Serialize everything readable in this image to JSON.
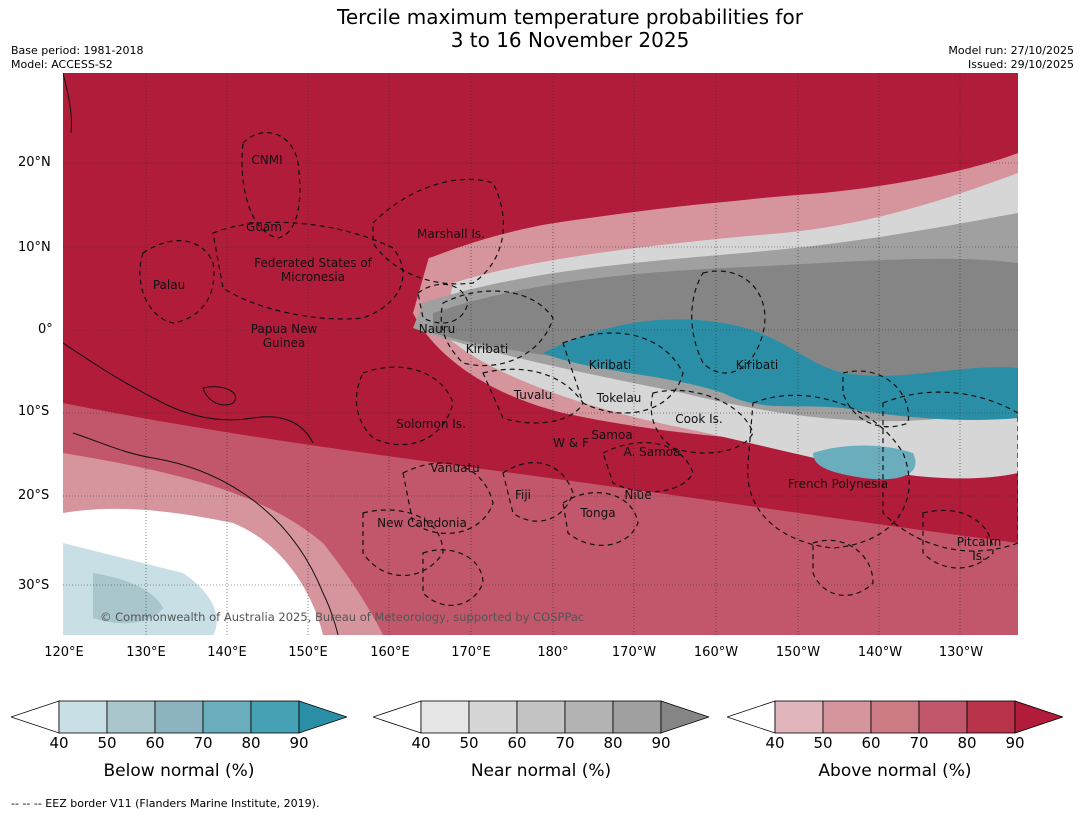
{
  "title": {
    "line1": "Tercile maximum temperature probabilities for",
    "line2": "3 to 16 November 2025"
  },
  "meta": {
    "base_period": "Base period: 1981-2018",
    "model": "Model: ACCESS-S2",
    "model_run": "Model run: 27/10/2025",
    "issued": "Issued: 29/10/2025"
  },
  "lat_ticks": [
    "20°N",
    "10°N",
    "0°",
    "10°S",
    "20°S",
    "30°S"
  ],
  "lon_ticks": [
    "120°E",
    "130°E",
    "140°E",
    "150°E",
    "160°E",
    "170°E",
    "180°",
    "170°W",
    "160°W",
    "150°W",
    "140°W",
    "130°W"
  ],
  "regions": [
    "CNMI",
    "Guam",
    "Marshall Is.",
    "Palau",
    "Federated States of Micronesia",
    "Papua New Guinea",
    "Nauru",
    "Kiribati",
    "Kiribati",
    "Kiribati",
    "Tuvalu",
    "Tokelau",
    "Solomon Is.",
    "Cook Is.",
    "Samoa",
    "W & F",
    "A. Samoa",
    "Vanuatu",
    "Fiji",
    "Niue",
    "French Polynesia",
    "Tonga",
    "New Caledonia",
    "Pitcairn Is."
  ],
  "credit": "© Commonwealth of Australia 2025, Bureau of Meteorology, supported by COSPPac",
  "colorbars": [
    {
      "label": "Below normal (%)",
      "ticks": [
        "40",
        "50",
        "60",
        "70",
        "80",
        "90"
      ],
      "colors": [
        "#ffffff",
        "#c9dfe6",
        "#a8c6cc",
        "#8bb3c0",
        "#6aaebe",
        "#47a1b5",
        "#2a8fa6"
      ]
    },
    {
      "label": "Near normal (%)",
      "ticks": [
        "40",
        "50",
        "60",
        "70",
        "80",
        "90"
      ],
      "colors": [
        "#ffffff",
        "#e6e6e6",
        "#d6d6d6",
        "#c4c4c4",
        "#b3b3b3",
        "#a0a0a0",
        "#858585"
      ]
    },
    {
      "label": "Above normal (%)",
      "ticks": [
        "40",
        "50",
        "60",
        "70",
        "80",
        "90"
      ],
      "colors": [
        "#ffffff",
        "#e0b5bb",
        "#d6949c",
        "#cc7a83",
        "#c2566a",
        "#b8324a",
        "#b01c3a"
      ]
    }
  ],
  "footer": "--  --  -- EEZ border V11 (Flanders Marine Institute, 2019)."
}
